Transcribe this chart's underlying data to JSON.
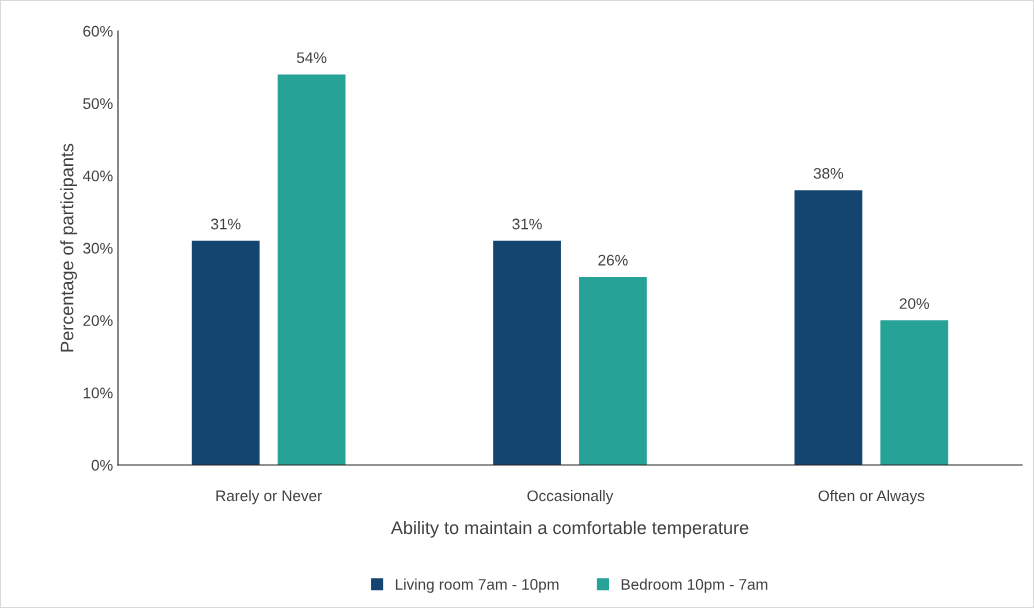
{
  "chart_data": {
    "type": "bar",
    "xlabel": "Ability to maintain a comfortable temperature",
    "ylabel": "Percentage of participants",
    "categories": [
      "Rarely or Never",
      "Occasionally",
      "Often or Always"
    ],
    "series": [
      {
        "name": "Living room 7am - 10pm",
        "color": "#144570",
        "values": [
          31,
          31,
          38
        ],
        "value_labels": [
          "31%",
          "31%",
          "38%"
        ]
      },
      {
        "name": "Bedroom 10pm - 7am",
        "color": "#26a296",
        "values": [
          54,
          26,
          20
        ],
        "value_labels": [
          "54%",
          "26%",
          "20%"
        ]
      }
    ],
    "ylim": [
      0,
      60
    ],
    "yticks": [
      {
        "value": 0,
        "label": "0%"
      },
      {
        "value": 10,
        "label": "10%"
      },
      {
        "value": 20,
        "label": "20%"
      },
      {
        "value": 30,
        "label": "30%"
      },
      {
        "value": 40,
        "label": "40%"
      },
      {
        "value": 50,
        "label": "50%"
      },
      {
        "value": 60,
        "label": "60%"
      }
    ],
    "grid": false,
    "legend": "bottom"
  }
}
